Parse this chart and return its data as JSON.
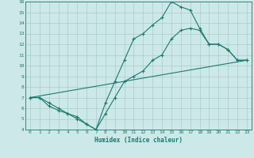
{
  "xlabel": "Humidex (Indice chaleur)",
  "bg_color": "#cde8e8",
  "line_color": "#1a7a6e",
  "grid_color": "#aacccc",
  "xlim": [
    -0.5,
    23.5
  ],
  "ylim": [
    4,
    16
  ],
  "xticks": [
    0,
    1,
    2,
    3,
    4,
    5,
    6,
    7,
    8,
    9,
    10,
    11,
    12,
    13,
    14,
    15,
    16,
    17,
    18,
    19,
    20,
    21,
    22,
    23
  ],
  "yticks": [
    4,
    5,
    6,
    7,
    8,
    9,
    10,
    11,
    12,
    13,
    14,
    15,
    16
  ],
  "line1_x": [
    0,
    1,
    2,
    3,
    4,
    5,
    6,
    7,
    8,
    9,
    10,
    11,
    12,
    13,
    14,
    15,
    16,
    17,
    18,
    19,
    20,
    21,
    22,
    23
  ],
  "line1_y": [
    7.0,
    7.0,
    6.5,
    6.0,
    5.5,
    5.0,
    4.5,
    4.0,
    6.5,
    8.5,
    10.5,
    12.5,
    13.0,
    13.8,
    14.5,
    16.0,
    15.5,
    15.2,
    13.5,
    12.0,
    12.0,
    11.5,
    10.5,
    10.5
  ],
  "line2_x": [
    0,
    1,
    2,
    3,
    4,
    5,
    6,
    7,
    8,
    9,
    10,
    11,
    12,
    13,
    14,
    15,
    16,
    17,
    18,
    19,
    20,
    21,
    22,
    23
  ],
  "line2_y": [
    7.0,
    7.0,
    6.2,
    5.8,
    5.5,
    5.2,
    4.5,
    4.0,
    5.5,
    7.0,
    8.5,
    9.0,
    9.5,
    10.5,
    11.0,
    12.5,
    13.3,
    13.5,
    13.3,
    12.0,
    12.0,
    11.5,
    10.5,
    10.5
  ],
  "line3_x": [
    0,
    23
  ],
  "line3_y": [
    7.0,
    10.5
  ]
}
